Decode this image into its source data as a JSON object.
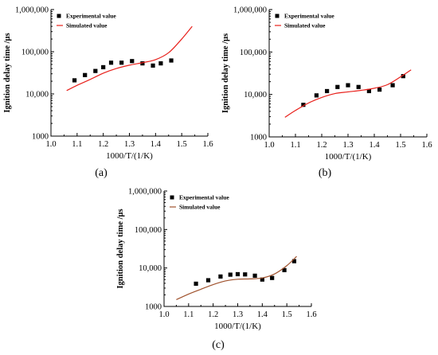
{
  "chart_data": [
    {
      "type": "scatter",
      "panel_label": "(a)",
      "xlabel": "1000/T/(1/K)",
      "ylabel": "Ignition delay time /μs",
      "xlim": [
        1.0,
        1.6
      ],
      "ylim": [
        1000,
        1000000
      ],
      "y_scale": "log",
      "x_ticks": [
        "1.0",
        "1.1",
        "1.2",
        "1.3",
        "1.4",
        "1.5",
        "1.6"
      ],
      "y_ticks": [
        "1000",
        "10,000",
        "100,000",
        "1,000,000"
      ],
      "legend_position": "top-left",
      "colors": {
        "simulated": "#e8201b",
        "experimental": "#000000"
      },
      "series": [
        {
          "name": "Experimental value",
          "marker": "square",
          "x": [
            1.09,
            1.13,
            1.17,
            1.2,
            1.23,
            1.27,
            1.31,
            1.35,
            1.39,
            1.42,
            1.46
          ],
          "y": [
            21000,
            28000,
            35000,
            43000,
            55000,
            55000,
            60000,
            53000,
            47000,
            53000,
            62000
          ]
        },
        {
          "name": "Simulated value",
          "marker": "line",
          "x": [
            1.06,
            1.1,
            1.15,
            1.2,
            1.25,
            1.3,
            1.35,
            1.4,
            1.45,
            1.5,
            1.54
          ],
          "y": [
            12000,
            16000,
            22000,
            31000,
            40000,
            48000,
            55000,
            65000,
            95000,
            200000,
            400000
          ]
        }
      ]
    },
    {
      "type": "scatter",
      "panel_label": "(b)",
      "xlabel": "1000/T/(1/K)",
      "ylabel": "Ignition delay time /μs",
      "xlim": [
        1.0,
        1.6
      ],
      "ylim": [
        1000,
        1000000
      ],
      "y_scale": "log",
      "x_ticks": [
        "1.0",
        "1.1",
        "1.2",
        "1.3",
        "1.4",
        "1.5",
        "1.6"
      ],
      "y_ticks": [
        "1000",
        "10,000",
        "100,000",
        "1,000,000"
      ],
      "legend_position": "top-left",
      "colors": {
        "simulated": "#e8201b",
        "experimental": "#000000"
      },
      "series": [
        {
          "name": "Experimental value",
          "marker": "square",
          "x": [
            1.13,
            1.18,
            1.22,
            1.26,
            1.3,
            1.34,
            1.38,
            1.42,
            1.47,
            1.51
          ],
          "y": [
            5700,
            9500,
            12000,
            15000,
            16500,
            15000,
            12000,
            13000,
            16500,
            27000
          ]
        },
        {
          "name": "Simulated value",
          "marker": "line",
          "x": [
            1.06,
            1.1,
            1.15,
            1.2,
            1.25,
            1.3,
            1.35,
            1.4,
            1.45,
            1.5,
            1.54
          ],
          "y": [
            2900,
            4200,
            6300,
            8500,
            10500,
            11500,
            12500,
            14000,
            17000,
            26000,
            38000
          ]
        }
      ]
    },
    {
      "type": "scatter",
      "panel_label": "(c)",
      "xlabel": "1000/T/(1/K)",
      "ylabel": "Ignition delay time /μs",
      "xlim": [
        1.0,
        1.6
      ],
      "ylim": [
        1000,
        1000000
      ],
      "y_scale": "log",
      "x_ticks": [
        "1.0",
        "1.1",
        "1.2",
        "1.3",
        "1.4",
        "1.5",
        "1.6"
      ],
      "y_ticks": [
        "1000",
        "10,000",
        "100,000",
        "1,000,000"
      ],
      "legend_position": "top-left",
      "colors": {
        "simulated": "#a0522d",
        "experimental": "#000000"
      },
      "series": [
        {
          "name": "Experimental value",
          "marker": "square",
          "x": [
            1.13,
            1.18,
            1.23,
            1.27,
            1.3,
            1.33,
            1.37,
            1.4,
            1.44,
            1.49,
            1.53
          ],
          "y": [
            3900,
            4800,
            6000,
            6700,
            6900,
            6800,
            6300,
            5000,
            5500,
            8800,
            15000
          ]
        },
        {
          "name": "Simulated value",
          "marker": "line",
          "x": [
            1.05,
            1.1,
            1.15,
            1.2,
            1.25,
            1.3,
            1.35,
            1.4,
            1.45,
            1.5,
            1.54
          ],
          "y": [
            1500,
            2100,
            2800,
            3700,
            4600,
            5100,
            5200,
            5500,
            7000,
            11500,
            20000
          ]
        }
      ]
    }
  ]
}
